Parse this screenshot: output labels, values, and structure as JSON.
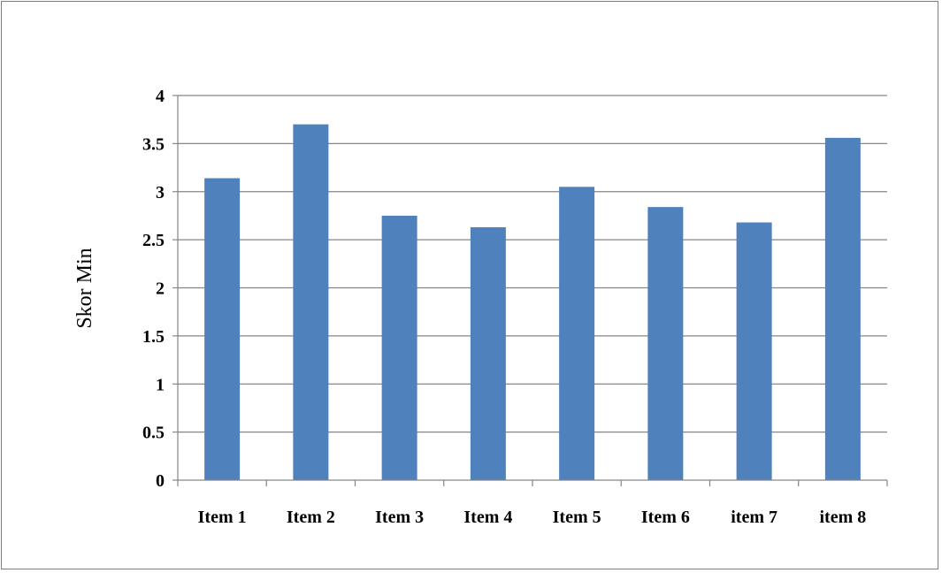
{
  "chart_data": {
    "type": "bar",
    "title": "",
    "xlabel": "",
    "ylabel": "Skor Min",
    "categories": [
      "Item 1",
      "Item 2",
      "Item 3",
      "Item 4",
      "Item 5",
      "Item 6",
      "item 7",
      "item 8"
    ],
    "values": [
      3.14,
      3.7,
      2.75,
      2.63,
      3.05,
      2.84,
      2.68,
      3.56
    ],
    "ylim": [
      0,
      4
    ],
    "yticks": [
      "0",
      "0.5",
      "1",
      "1.5",
      "2",
      "2.5",
      "3",
      "3.5",
      "4"
    ],
    "grid": true,
    "legend": "none",
    "bar_color": "#4f81bd",
    "grid_color": "#868686"
  }
}
